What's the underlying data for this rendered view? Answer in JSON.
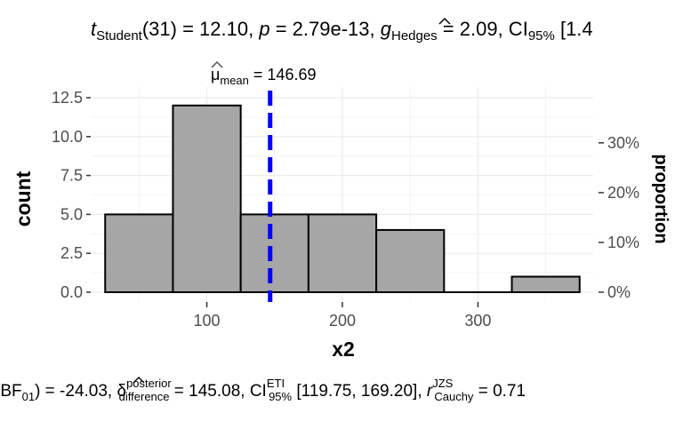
{
  "chart_data": {
    "type": "histogram",
    "title": {
      "t_symbol": "t",
      "t_sub": "Student",
      "df_text": "(31) = 12.10, ",
      "p_symbol": "p",
      "p_text": " = 2.79e-13, ",
      "g_symbol": "g",
      "g_sub": "Hedges",
      "g_text": " = 2.09, CI",
      "ci_sub": "95%",
      "ci_text": " [1.4"
    },
    "subtitle": {
      "bf_text": "(BF",
      "bf_sub": "01",
      "bf_val": ") = -24.03, ",
      "delta_symbol": "δ",
      "delta_sup": "posterior",
      "delta_sub": "difference",
      "delta_val": " = 145.08, CI",
      "ci_sup": "ETI",
      "ci_sub": "95%",
      "ci_val": " [119.75, 169.20], ",
      "r_symbol": "r",
      "r_sup": "JZS",
      "r_sub": "Cauchy",
      "r_val": " = 0.71"
    },
    "mean_label": {
      "symbol": "μ",
      "sub": "mean",
      "value_text": " = 146.69"
    },
    "mean_value": 146.69,
    "xlabel": "x2",
    "ylabel": "count",
    "y2label": "proportion",
    "xlim": [
      15,
      385
    ],
    "ylim": [
      0,
      12.5
    ],
    "bins": [
      {
        "x0": 25,
        "x1": 75,
        "count": 5
      },
      {
        "x0": 75,
        "x1": 125,
        "count": 12
      },
      {
        "x0": 125,
        "x1": 175,
        "count": 5
      },
      {
        "x0": 175,
        "x1": 225,
        "count": 5
      },
      {
        "x0": 225,
        "x1": 275,
        "count": 4
      },
      {
        "x0": 275,
        "x1": 325,
        "count": 0
      },
      {
        "x0": 325,
        "x1": 375,
        "count": 1
      }
    ],
    "x_ticks": [
      100,
      200,
      300
    ],
    "x_tick_labels": [
      "100",
      "200",
      "300"
    ],
    "y_ticks": [
      0,
      2.5,
      5,
      7.5,
      10,
      12.5
    ],
    "y_tick_labels": [
      "0.0",
      "2.5",
      "5.0",
      "7.5",
      "10.0",
      "12.5"
    ],
    "y2_ticks": [
      0,
      3.2,
      6.4,
      9.6
    ],
    "y2_tick_labels": [
      "0%",
      "10%",
      "20%",
      "30%"
    ],
    "grid": true,
    "colors": {
      "bar_fill": "#a6a6a6",
      "bar_stroke": "#000000",
      "mean_line": "#0000ff",
      "grid": "#ebebeb"
    }
  }
}
